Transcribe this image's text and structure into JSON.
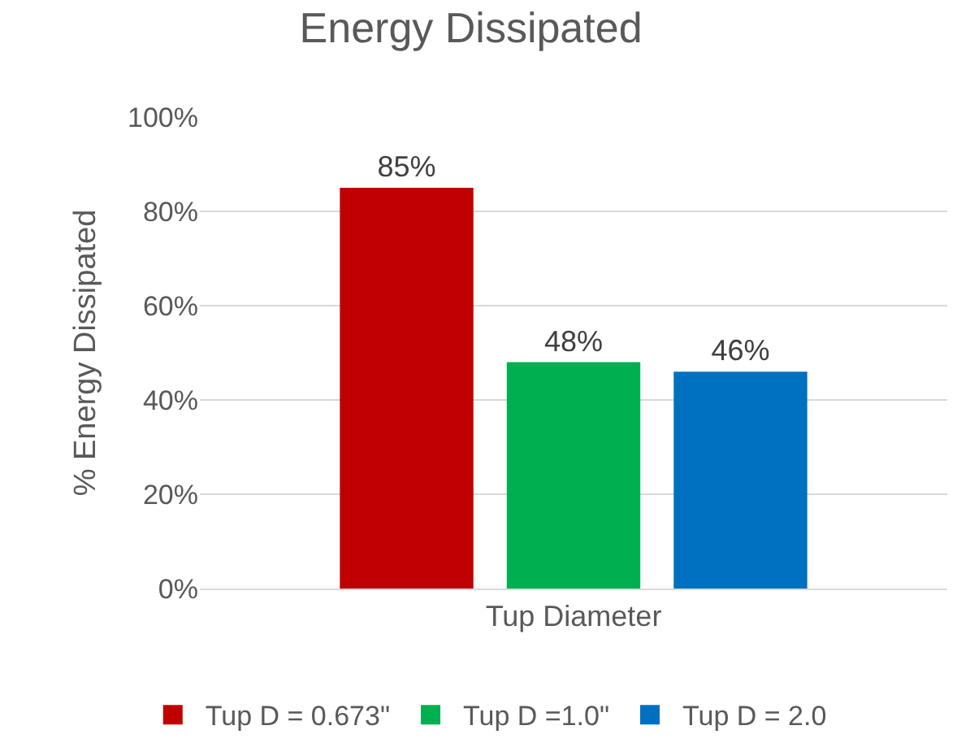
{
  "chart_data": {
    "type": "bar",
    "title": "Energy Dissipated",
    "ylabel": "% Energy Dissipated",
    "categories": [
      "Tup Diameter"
    ],
    "series": [
      {
        "name": "Tup D = 0.673\"",
        "color": "#c00000",
        "values": [
          85
        ],
        "value_labels": [
          "85%"
        ]
      },
      {
        "name": "Tup D =1.0\"",
        "color": "#00b050",
        "values": [
          48
        ],
        "value_labels": [
          "48%"
        ]
      },
      {
        "name": "Tup D = 2.0",
        "color": "#0070c0",
        "values": [
          46
        ],
        "value_labels": [
          "46%"
        ]
      }
    ],
    "ylim": [
      0,
      100
    ],
    "yticks": [
      {
        "value": 0,
        "label": "0%"
      },
      {
        "value": 20,
        "label": "20%"
      },
      {
        "value": 40,
        "label": "40%"
      },
      {
        "value": 60,
        "label": "60%"
      },
      {
        "value": 80,
        "label": "80%"
      },
      {
        "value": 100,
        "label": "100%"
      }
    ],
    "grid": "y",
    "legend": "bottom"
  }
}
